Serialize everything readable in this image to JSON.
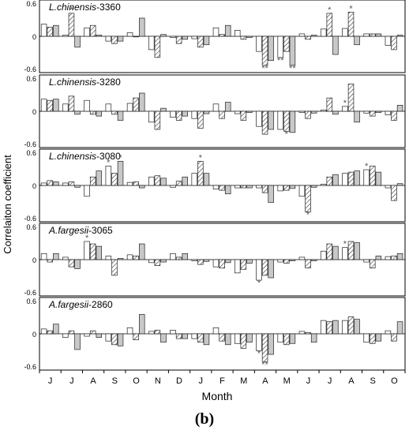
{
  "caption": "(b)",
  "chart_data": {
    "type": "bar",
    "ylabel": "Correlaiton coefficient",
    "xlabel": "Month",
    "ylim": [
      -0.6,
      0.6
    ],
    "yticks": [
      "0.6",
      "0",
      "-0.6"
    ],
    "months": [
      "J",
      "J",
      "A",
      "S",
      "O",
      "N",
      "D",
      "J",
      "F",
      "M",
      "A",
      "M",
      "J",
      "J",
      "A",
      "S",
      "O"
    ],
    "bar_styles": [
      "white",
      "hatched",
      "gray"
    ],
    "panels": [
      {
        "species": "L.chinensis",
        "altitude": "-3360",
        "values": [
          [
            0.2,
            0.15,
            0.18
          ],
          [
            0.02,
            0.38,
            -0.18
          ],
          [
            0.14,
            0.18,
            0.02
          ],
          [
            -0.08,
            -0.12,
            -0.08
          ],
          [
            0.06,
            -0.01,
            0.3
          ],
          [
            -0.22,
            -0.35,
            0.03
          ],
          [
            -0.02,
            -0.12,
            -0.05
          ],
          [
            -0.04,
            -0.18,
            -0.14
          ],
          [
            0.14,
            0.03,
            0.18
          ],
          [
            0.1,
            -0.05,
            -0.02
          ],
          [
            -0.25,
            -0.48,
            -0.4
          ],
          [
            -0.35,
            -0.25,
            -0.48
          ],
          [
            0.04,
            -0.05,
            0.02
          ],
          [
            0.12,
            0.38,
            -0.3
          ],
          [
            0.13,
            0.4,
            -0.14
          ],
          [
            0.04,
            0.04,
            0.04
          ],
          [
            -0.15,
            -0.22,
            0.02
          ]
        ],
        "marks": [
          {
            "month": 1,
            "bar": 1,
            "side": "above",
            "text": "*"
          },
          {
            "month": 10,
            "bar": 1,
            "side": "below",
            "text": "**"
          },
          {
            "month": 11,
            "bar": 0,
            "side": "below",
            "text": "**"
          },
          {
            "month": 11,
            "bar": 2,
            "side": "below",
            "text": "**"
          },
          {
            "month": 13,
            "bar": 1,
            "side": "above",
            "text": "*"
          },
          {
            "month": 14,
            "bar": 1,
            "side": "above",
            "text": "*"
          }
        ]
      },
      {
        "species": "L.chinensis",
        "altitude": "-3280",
        "values": [
          [
            0.2,
            0.18,
            0.2
          ],
          [
            0.12,
            0.25,
            -0.05
          ],
          [
            0.18,
            -0.05,
            -0.08
          ],
          [
            0.12,
            -0.05,
            -0.15
          ],
          [
            0.13,
            0.22,
            0.3
          ],
          [
            -0.18,
            -0.3,
            0.05
          ],
          [
            -0.1,
            -0.15,
            -0.08
          ],
          [
            -0.12,
            -0.28,
            -0.04
          ],
          [
            0.12,
            -0.12,
            0.15
          ],
          [
            -0.04,
            -0.15,
            -0.02
          ],
          [
            -0.25,
            -0.38,
            -0.3
          ],
          [
            -0.3,
            -0.33,
            -0.35
          ],
          [
            -0.02,
            -0.12,
            -0.03
          ],
          [
            0.02,
            0.22,
            -0.05
          ],
          [
            0.08,
            0.45,
            -0.18
          ],
          [
            -0.03,
            -0.08,
            -0.02
          ],
          [
            -0.06,
            -0.15,
            0.1
          ]
        ],
        "marks": [
          {
            "month": 11,
            "bar": 1,
            "side": "below",
            "text": "*"
          },
          {
            "month": 14,
            "bar": 0,
            "side": "above",
            "text": "*"
          }
        ]
      },
      {
        "species": "L.chinensis",
        "altitude": "-3080",
        "values": [
          [
            0.04,
            0.08,
            0.06
          ],
          [
            0.04,
            0.06,
            -0.03
          ],
          [
            -0.18,
            0.14,
            0.24
          ],
          [
            0.32,
            0.2,
            0.4
          ],
          [
            0.05,
            0.06,
            -0.04
          ],
          [
            0.14,
            0.16,
            0.12
          ],
          [
            -0.03,
            0.07,
            0.14
          ],
          [
            0.2,
            0.4,
            0.2
          ],
          [
            -0.06,
            -0.08,
            -0.14
          ],
          [
            -0.04,
            -0.04,
            -0.04
          ],
          [
            -0.04,
            -0.12,
            -0.28
          ],
          [
            -0.09,
            -0.08,
            -0.05
          ],
          [
            -0.18,
            -0.44,
            -0.03
          ],
          [
            0.02,
            0.14,
            0.18
          ],
          [
            0.2,
            0.22,
            0.24
          ],
          [
            0.26,
            0.32,
            0.22
          ],
          [
            -0.04,
            -0.25,
            0.03
          ]
        ],
        "marks": [
          {
            "month": 3,
            "bar": 0,
            "side": "above",
            "text": "*"
          },
          {
            "month": 3,
            "bar": 2,
            "side": "above",
            "text": "*"
          },
          {
            "month": 7,
            "bar": 1,
            "side": "above",
            "text": "*"
          },
          {
            "month": 12,
            "bar": 1,
            "side": "below",
            "text": "*"
          },
          {
            "month": 15,
            "bar": 0,
            "side": "above",
            "text": "*"
          }
        ]
      },
      {
        "species": "A.fargesii",
        "altitude": "-3065",
        "values": [
          [
            0.1,
            -0.04,
            0.1
          ],
          [
            0.04,
            -0.12,
            -0.15
          ],
          [
            0.3,
            0.26,
            0.22
          ],
          [
            0.06,
            -0.26,
            0.02
          ],
          [
            0.08,
            0.06,
            0.26
          ],
          [
            -0.05,
            -0.1,
            -0.04
          ],
          [
            0.1,
            0.04,
            0.1
          ],
          [
            -0.02,
            -0.08,
            -0.03
          ],
          [
            -0.12,
            -0.14,
            -0.05
          ],
          [
            -0.22,
            -0.16,
            -0.06
          ],
          [
            -0.34,
            -0.26,
            -0.3
          ],
          [
            -0.04,
            -0.06,
            -0.02
          ],
          [
            0.04,
            -0.14,
            -0.02
          ],
          [
            0.14,
            0.26,
            0.22
          ],
          [
            0.2,
            0.3,
            0.28
          ],
          [
            -0.04,
            -0.14,
            0.06
          ],
          [
            0.05,
            0.06,
            0.1
          ]
        ],
        "marks": [
          {
            "month": 2,
            "bar": 0,
            "side": "above",
            "text": "*"
          },
          {
            "month": 10,
            "bar": 0,
            "side": "below",
            "text": "*"
          },
          {
            "month": 14,
            "bar": 0,
            "side": "above",
            "text": "*"
          }
        ]
      },
      {
        "species": "A.fargesii",
        "altitude": "-2860",
        "values": [
          [
            0.08,
            0.05,
            0.16
          ],
          [
            -0.06,
            0.05,
            -0.26
          ],
          [
            -0.04,
            0.05,
            -0.06
          ],
          [
            -0.12,
            -0.18,
            -0.2
          ],
          [
            0.1,
            -0.1,
            0.32
          ],
          [
            0.04,
            0.06,
            -0.14
          ],
          [
            0.06,
            -0.08,
            -0.08
          ],
          [
            -0.08,
            -0.14,
            -0.18
          ],
          [
            0.1,
            -0.12,
            -0.18
          ],
          [
            -0.16,
            -0.24,
            -0.14
          ],
          [
            -0.28,
            -0.46,
            -0.34
          ],
          [
            -0.14,
            -0.18,
            -0.16
          ],
          [
            0.04,
            0.02,
            -0.14
          ],
          [
            0.22,
            0.2,
            0.22
          ],
          [
            0.22,
            0.28,
            0.24
          ],
          [
            -0.14,
            -0.16,
            -0.12
          ],
          [
            0.05,
            -0.12,
            0.2
          ]
        ],
        "marks": [
          {
            "month": 10,
            "bar": 0,
            "side": "below",
            "text": "*"
          },
          {
            "month": 10,
            "bar": 1,
            "side": "below",
            "text": "**"
          }
        ]
      }
    ]
  }
}
